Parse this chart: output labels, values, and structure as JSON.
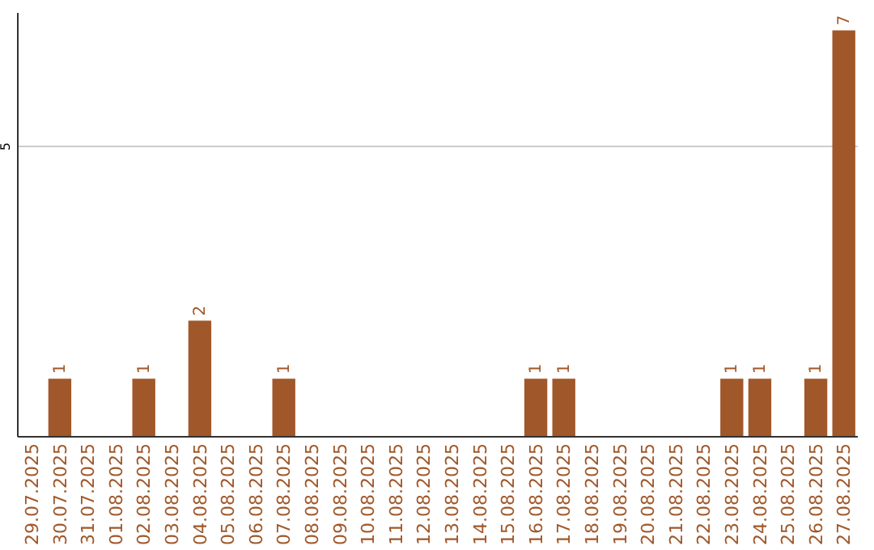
{
  "chart_data": {
    "type": "bar",
    "categories": [
      "29.07.2025",
      "30.07.2025",
      "31.07.2025",
      "01.08.2025",
      "02.08.2025",
      "03.08.2025",
      "04.08.2025",
      "05.08.2025",
      "06.08.2025",
      "07.08.2025",
      "08.08.2025",
      "09.08.2025",
      "10.08.2025",
      "11.08.2025",
      "12.08.2025",
      "13.08.2025",
      "14.08.2025",
      "15.08.2025",
      "16.08.2025",
      "17.08.2025",
      "18.08.2025",
      "19.08.2025",
      "20.08.2025",
      "21.08.2025",
      "22.08.2025",
      "23.08.2025",
      "24.08.2025",
      "25.08.2025",
      "26.08.2025",
      "27.08.2025"
    ],
    "values": [
      0,
      1,
      0,
      0,
      1,
      0,
      2,
      0,
      0,
      1,
      0,
      0,
      0,
      0,
      0,
      0,
      0,
      0,
      1,
      1,
      0,
      0,
      0,
      0,
      0,
      1,
      1,
      0,
      1,
      7
    ],
    "value_labels": [
      null,
      "1",
      null,
      null,
      "1",
      null,
      "2",
      null,
      null,
      "1",
      null,
      null,
      null,
      null,
      null,
      null,
      null,
      null,
      "1",
      "1",
      null,
      null,
      null,
      null,
      null,
      "1",
      "1",
      null,
      "1",
      "7"
    ],
    "color": "#a0582a",
    "ylim": [
      0,
      7.3
    ],
    "yticks": [
      5
    ],
    "grid": "y"
  }
}
